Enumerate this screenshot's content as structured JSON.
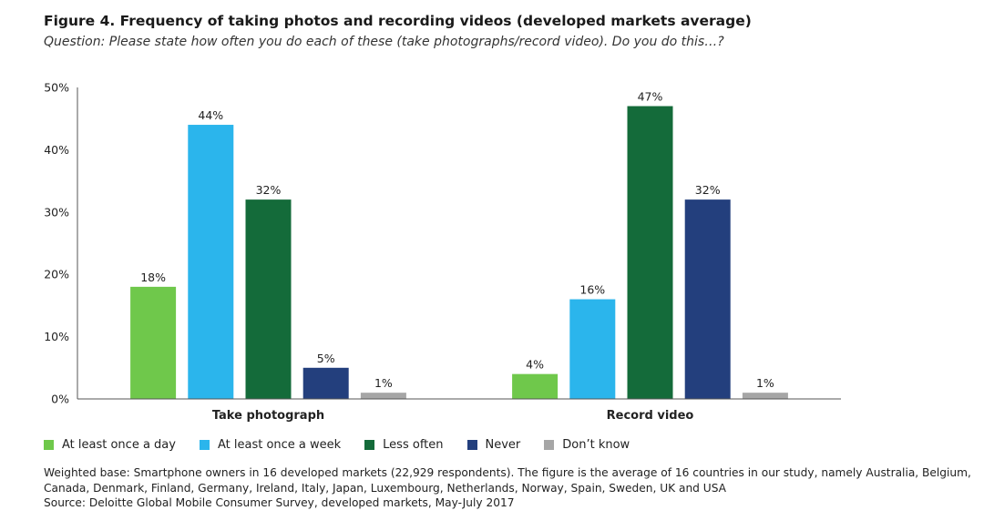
{
  "title": "Figure 4. Frequency of taking photos and recording videos (developed markets average)",
  "subtitle": "Question: Please state how often you do each of these (take photographs/record video). Do you do this…?",
  "chart_data": {
    "type": "bar",
    "categories": [
      "Take photograph",
      "Record video"
    ],
    "series": [
      {
        "name": "At least once a day",
        "color": "#6fc84b",
        "values": [
          18,
          4
        ]
      },
      {
        "name": "At least once a week",
        "color": "#2bb5ec",
        "values": [
          44,
          16
        ]
      },
      {
        "name": "Less often",
        "color": "#146b3a",
        "values": [
          32,
          47
        ]
      },
      {
        "name": "Never",
        "color": "#233f7d",
        "values": [
          5,
          32
        ]
      },
      {
        "name": "Don’t know",
        "color": "#a6a6a6",
        "values": [
          1,
          1
        ]
      }
    ],
    "ylim": [
      0,
      50
    ],
    "yticks": [
      0,
      10,
      20,
      30,
      40,
      50
    ],
    "yticklabels": [
      "0%",
      "10%",
      "20%",
      "30%",
      "40%",
      "50%"
    ],
    "value_suffix": "%",
    "xlabel": "",
    "ylabel": "",
    "grid": false,
    "legend": "bottom-left"
  },
  "footnote": {
    "line1": "Weighted base: Smartphone owners in 16 developed markets (22,929 respondents). The figure is the average of 16 countries in our study, namely Australia, Belgium,",
    "line2": "Canada, Denmark, Finland, Germany, Ireland, Italy, Japan, Luxembourg, Netherlands, Norway, Spain, Sweden, UK and USA",
    "line3": "Source: Deloitte Global Mobile Consumer Survey, developed markets, May-July 2017"
  }
}
